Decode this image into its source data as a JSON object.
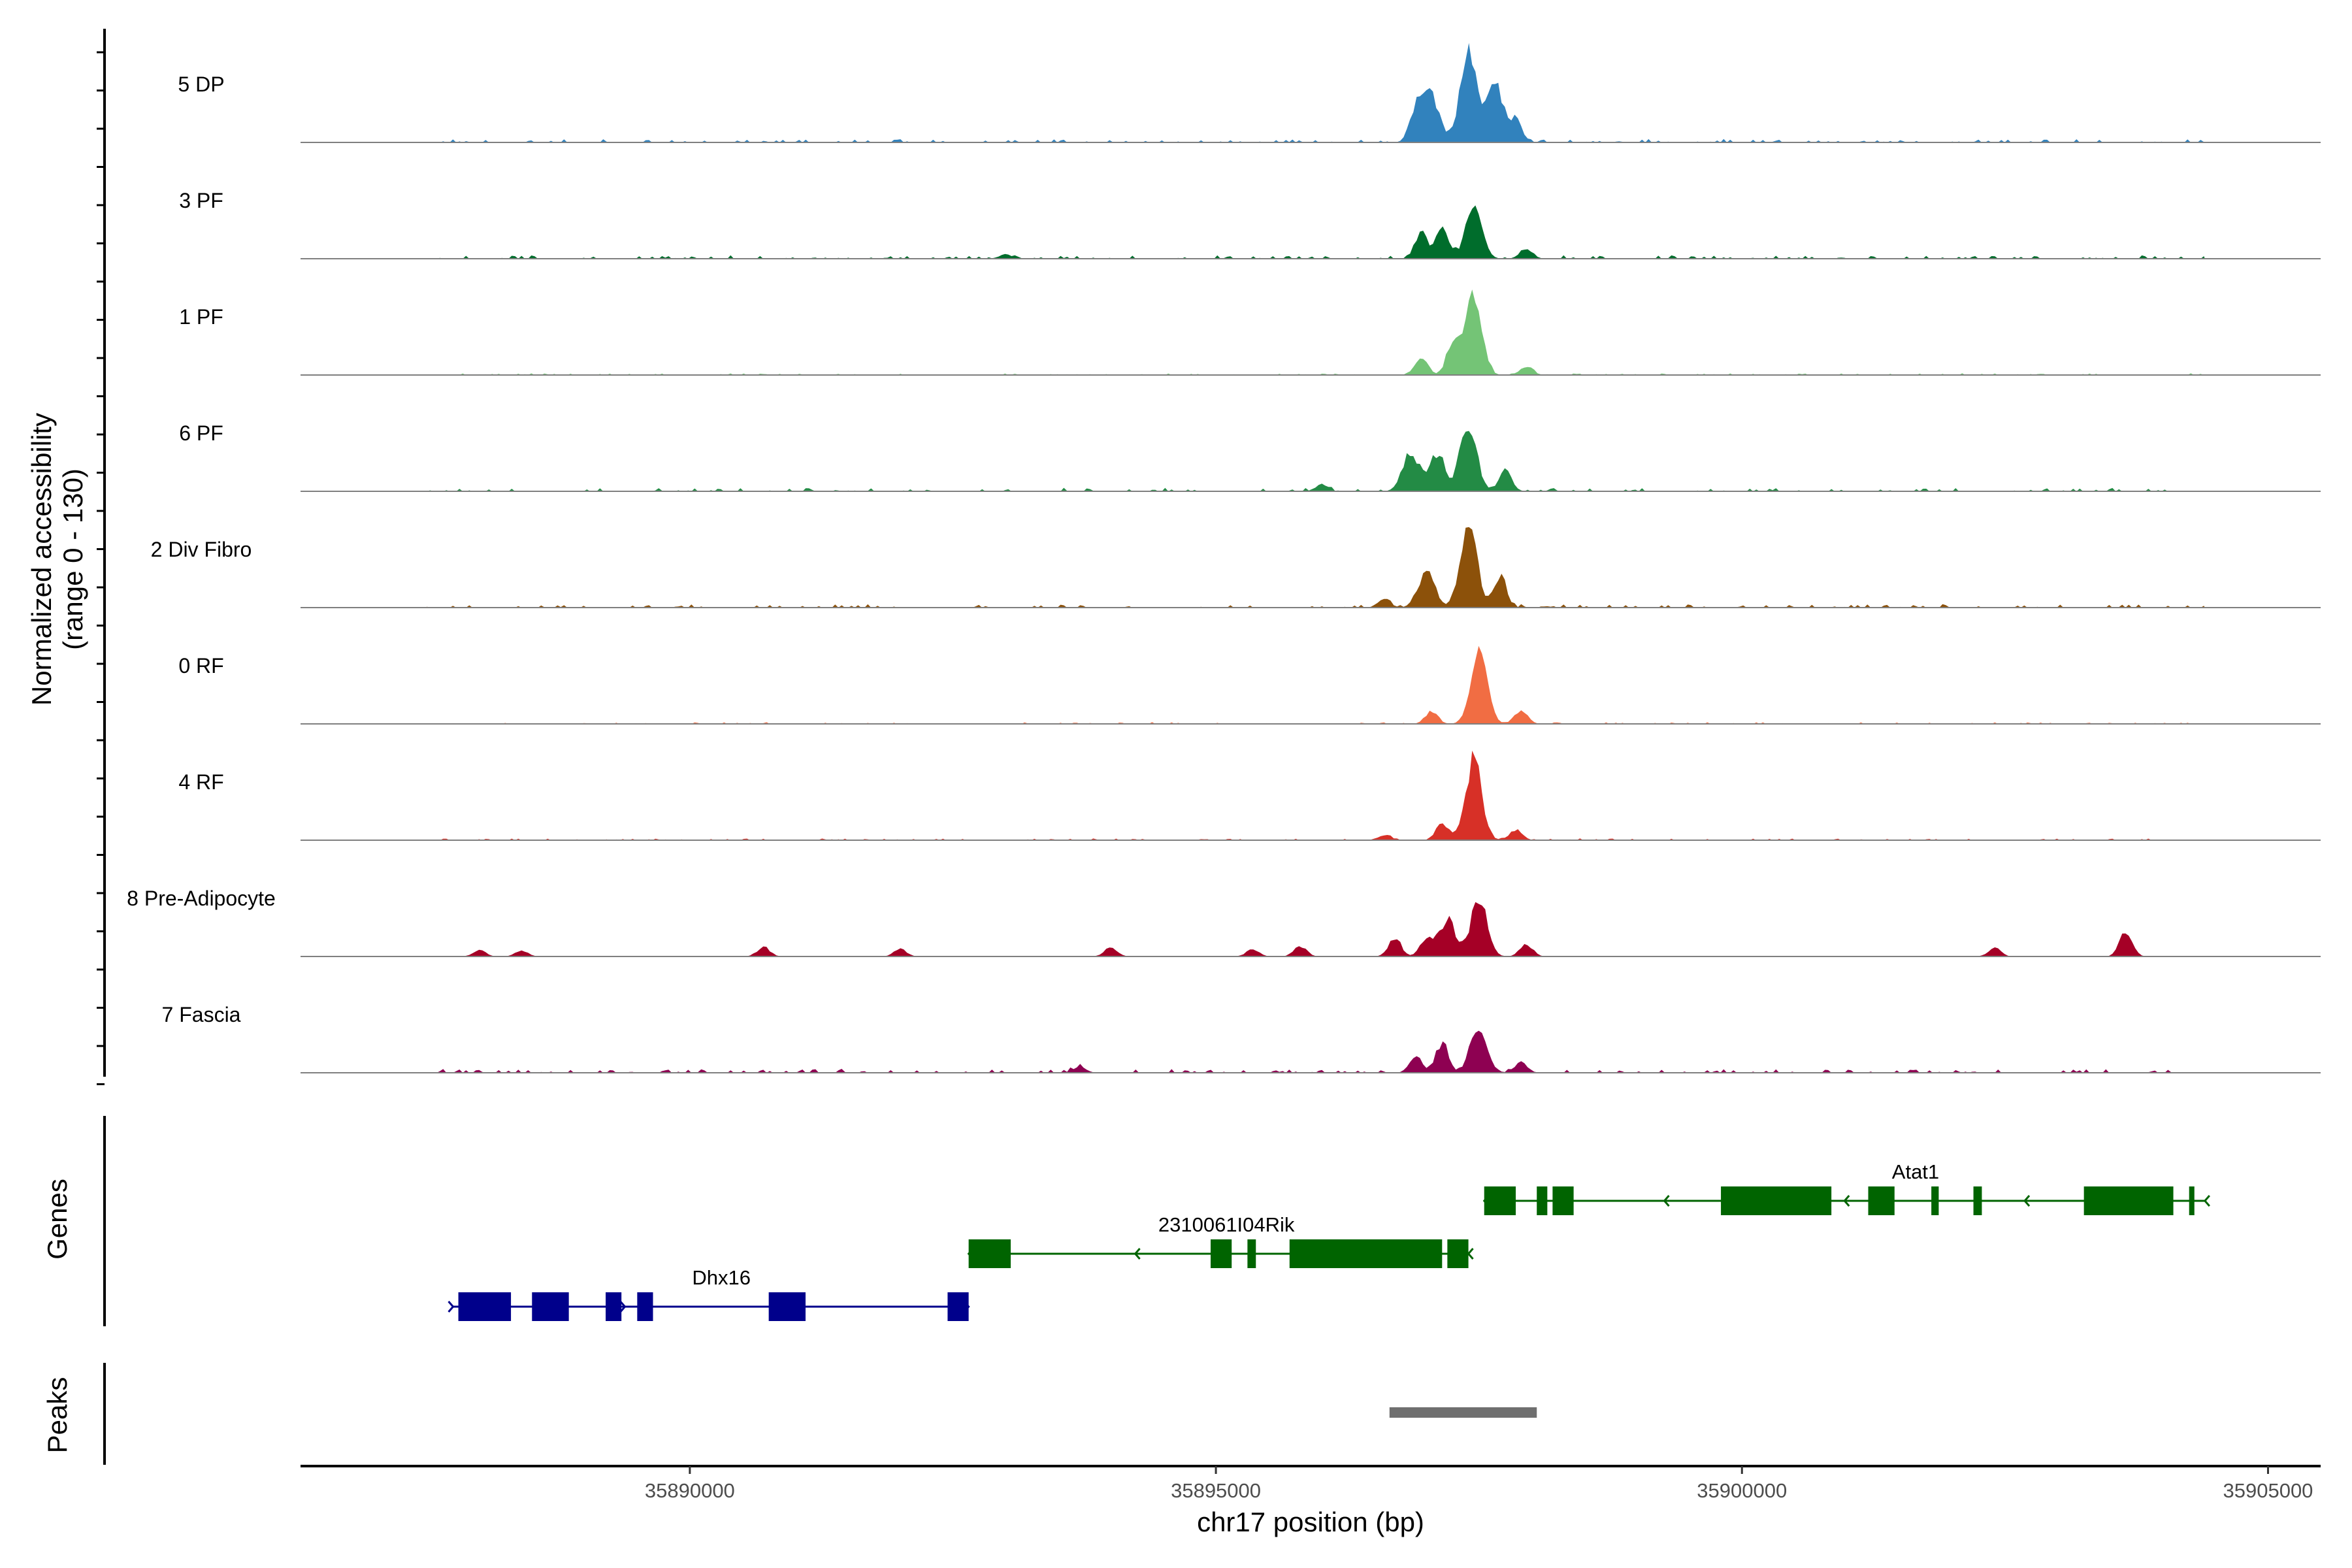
{
  "chart_data": {
    "type": "area",
    "title": "",
    "xlabel": "chr17 position (bp)",
    "ylabel": "Normalized accessibility",
    "ylabel_range": "(range 0 - 130)",
    "xlim": [
      35886300,
      35905500
    ],
    "ylim": [
      0,
      130
    ],
    "x_ticks": [
      35890000,
      35895000,
      35900000,
      35905000
    ],
    "x_tick_labels": [
      "35890000",
      "35895000",
      "35900000",
      "35905000"
    ],
    "peak_center": 35897450,
    "tracks": [
      {
        "name": "5 DP",
        "color": "#3182bd",
        "peaks": [
          {
            "x": 35897400,
            "h": 0.9
          },
          {
            "x": 35896900,
            "h": 0.3
          },
          {
            "x": 35897050,
            "h": 0.45
          },
          {
            "x": 35897650,
            "h": 0.55
          },
          {
            "x": 35897850,
            "h": 0.22
          }
        ],
        "noise": 0.03
      },
      {
        "name": "3 PF",
        "color": "#006d2c",
        "peaks": [
          {
            "x": 35897450,
            "h": 0.48
          },
          {
            "x": 35896950,
            "h": 0.25
          },
          {
            "x": 35897150,
            "h": 0.3
          },
          {
            "x": 35897950,
            "h": 0.1
          },
          {
            "x": 35893000,
            "h": 0.04
          }
        ],
        "noise": 0.03
      },
      {
        "name": "1 PF",
        "color": "#74c476",
        "peaks": [
          {
            "x": 35897450,
            "h": 0.75
          },
          {
            "x": 35897250,
            "h": 0.3
          },
          {
            "x": 35896950,
            "h": 0.18
          },
          {
            "x": 35897950,
            "h": 0.08
          }
        ],
        "noise": 0.015
      },
      {
        "name": "6 PF",
        "color": "#238b45",
        "peaks": [
          {
            "x": 35897400,
            "h": 0.65
          },
          {
            "x": 35897100,
            "h": 0.33
          },
          {
            "x": 35896850,
            "h": 0.36
          },
          {
            "x": 35897750,
            "h": 0.2
          },
          {
            "x": 35896000,
            "h": 0.06
          }
        ],
        "noise": 0.03
      },
      {
        "name": "2 Div Fibro",
        "color": "#8c510a",
        "peaks": [
          {
            "x": 35897400,
            "h": 0.85
          },
          {
            "x": 35897000,
            "h": 0.35
          },
          {
            "x": 35897700,
            "h": 0.3
          },
          {
            "x": 35896600,
            "h": 0.08
          }
        ],
        "noise": 0.03
      },
      {
        "name": "0 RF",
        "color": "#f16d43",
        "peaks": [
          {
            "x": 35897500,
            "h": 0.68
          },
          {
            "x": 35897050,
            "h": 0.12
          },
          {
            "x": 35897900,
            "h": 0.13
          }
        ],
        "noise": 0.015
      },
      {
        "name": "4 RF",
        "color": "#d73027",
        "peaks": [
          {
            "x": 35897450,
            "h": 0.76
          },
          {
            "x": 35897150,
            "h": 0.16
          },
          {
            "x": 35897850,
            "h": 0.1
          },
          {
            "x": 35896600,
            "h": 0.05
          }
        ],
        "noise": 0.015
      },
      {
        "name": "8 Pre-Adipocyte",
        "color": "#a50026",
        "peaks": [
          {
            "x": 35897500,
            "h": 0.55
          },
          {
            "x": 35897200,
            "h": 0.35
          },
          {
            "x": 35896700,
            "h": 0.18
          },
          {
            "x": 35897000,
            "h": 0.16
          },
          {
            "x": 35897950,
            "h": 0.12
          },
          {
            "x": 35903650,
            "h": 0.25
          },
          {
            "x": 35888000,
            "h": 0.06
          },
          {
            "x": 35888400,
            "h": 0.06
          },
          {
            "x": 35890700,
            "h": 0.09
          },
          {
            "x": 35892000,
            "h": 0.07
          },
          {
            "x": 35894000,
            "h": 0.09
          },
          {
            "x": 35895350,
            "h": 0.07
          },
          {
            "x": 35895800,
            "h": 0.1
          },
          {
            "x": 35902400,
            "h": 0.08
          }
        ],
        "noise": 0.0
      },
      {
        "name": "7 Fascia",
        "color": "#8e0152",
        "peaks": [
          {
            "x": 35897500,
            "h": 0.45
          },
          {
            "x": 35897150,
            "h": 0.28
          },
          {
            "x": 35896900,
            "h": 0.16
          },
          {
            "x": 35897900,
            "h": 0.1
          },
          {
            "x": 35893700,
            "h": 0.06
          }
        ],
        "noise": 0.035
      }
    ],
    "genes_axis_label": "Genes",
    "peaks_axis_label": "Peaks",
    "genes": [
      {
        "name": "Atat1",
        "color": "#006400",
        "strand": "-",
        "start": 35897550,
        "end": 35904400,
        "row": 0,
        "exons": [
          [
            35897550,
            35897850
          ],
          [
            35898050,
            35898150
          ],
          [
            35898200,
            35898400
          ],
          [
            35899800,
            35900850
          ],
          [
            35901200,
            35901450
          ],
          [
            35901800,
            35901870
          ],
          [
            35902200,
            35902280
          ],
          [
            35903250,
            35904100
          ],
          [
            35904250,
            35904300
          ]
        ]
      },
      {
        "name": "2310061I04Rik",
        "color": "#006400",
        "strand": "-",
        "start": 35892650,
        "end": 35897400,
        "row": 1,
        "exons": [
          [
            35892650,
            35893050
          ],
          [
            35894950,
            35895150
          ],
          [
            35895300,
            35895380
          ],
          [
            35895700,
            35897150
          ],
          [
            35897200,
            35897400
          ]
        ]
      },
      {
        "name": "Dhx16",
        "color": "#00008b",
        "strand": "+",
        "start": 35887750,
        "end": 35892650,
        "row": 2,
        "exons": [
          [
            35887800,
            35888300
          ],
          [
            35888500,
            35888850
          ],
          [
            35889200,
            35889350
          ],
          [
            35889500,
            35889650
          ],
          [
            35890750,
            35891100
          ],
          [
            35892450,
            35892650
          ]
        ]
      }
    ],
    "peak_regions": [
      [
        35896650,
        35898050
      ]
    ]
  }
}
